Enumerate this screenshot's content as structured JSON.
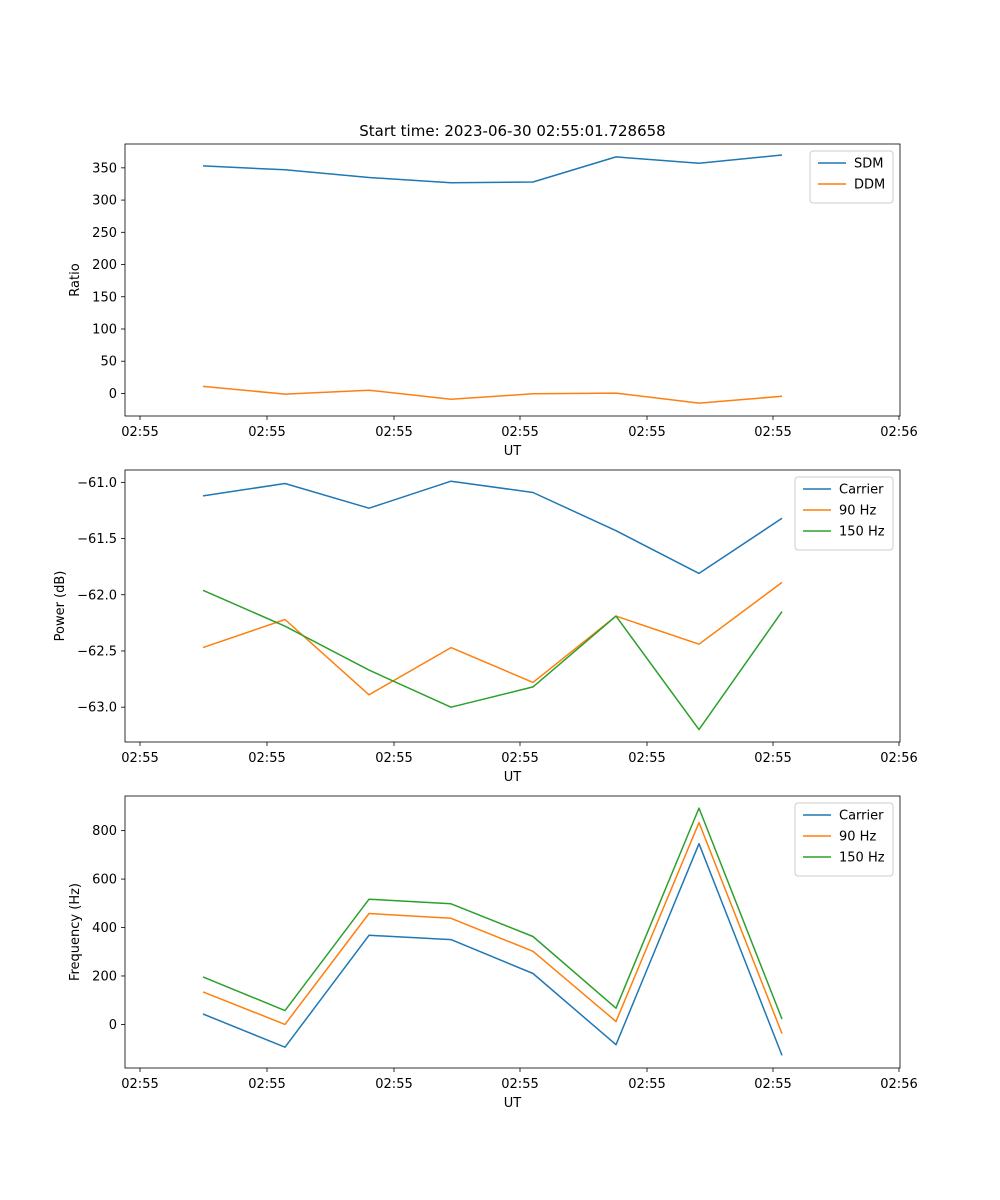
{
  "figure": {
    "title": "Start time: 2023-06-30 02:55:01.728658"
  },
  "colors": {
    "blue": "#1f77b4",
    "orange": "#ff7f0e",
    "green": "#2ca02c"
  },
  "chart_data": [
    {
      "type": "line",
      "title": "Start time: 2023-06-30 02:55:01.728658",
      "xlabel": "UT",
      "ylabel": "Ratio",
      "x_tick_labels": [
        "02:55",
        "02:55",
        "02:55",
        "02:55",
        "02:55",
        "02:55",
        "02:56"
      ],
      "y_ticks": [
        0,
        50,
        100,
        150,
        200,
        250,
        300,
        350
      ],
      "ylim": [
        -35,
        387
      ],
      "grid": false,
      "legend_position": "top-right",
      "series": [
        {
          "name": "SDM",
          "color": "#1f77b4",
          "values": [
            353,
            347,
            335,
            327,
            328,
            367,
            357,
            370
          ]
        },
        {
          "name": "DDM",
          "color": "#ff7f0e",
          "values": [
            11,
            -1,
            5,
            -9,
            -0.5,
            0.5,
            -15,
            -4.5
          ]
        }
      ]
    },
    {
      "type": "line",
      "title": "",
      "xlabel": "UT",
      "ylabel": "Power (dB)",
      "x_tick_labels": [
        "02:55",
        "02:55",
        "02:55",
        "02:55",
        "02:55",
        "02:55",
        "02:56"
      ],
      "y_ticks": [
        -61.0,
        -61.5,
        -62.0,
        -62.5,
        -63.0
      ],
      "y_tick_labels": [
        "−61.0",
        "−61.5",
        "−62.0",
        "−62.5",
        "−63.0"
      ],
      "ylim": [
        -63.31,
        -60.89
      ],
      "grid": false,
      "legend_position": "top-right",
      "series": [
        {
          "name": "Carrier",
          "color": "#1f77b4",
          "values": [
            -61.12,
            -61.01,
            -61.23,
            -60.99,
            -61.09,
            -61.43,
            -61.81,
            -61.32
          ]
        },
        {
          "name": "90 Hz",
          "color": "#ff7f0e",
          "values": [
            -62.47,
            -62.22,
            -62.89,
            -62.47,
            -62.78,
            -62.19,
            -62.44,
            -61.89
          ]
        },
        {
          "name": "150 Hz",
          "color": "#2ca02c",
          "values": [
            -61.96,
            -62.28,
            -62.67,
            -63.0,
            -62.82,
            -62.19,
            -63.2,
            -62.15
          ]
        }
      ]
    },
    {
      "type": "line",
      "title": "",
      "xlabel": "UT",
      "ylabel": "Frequency (Hz)",
      "x_tick_labels": [
        "02:55",
        "02:55",
        "02:55",
        "02:55",
        "02:55",
        "02:55",
        "02:56"
      ],
      "y_ticks": [
        0,
        200,
        400,
        600,
        800
      ],
      "ylim": [
        -180,
        943
      ],
      "grid": false,
      "legend_position": "top-right",
      "series": [
        {
          "name": "Carrier",
          "color": "#1f77b4",
          "values": [
            43,
            -94,
            368,
            350,
            210,
            -84,
            746,
            -128
          ]
        },
        {
          "name": "90 Hz",
          "color": "#ff7f0e",
          "values": [
            134,
            0,
            458,
            438,
            302,
            12,
            833,
            -38
          ]
        },
        {
          "name": "150 Hz",
          "color": "#2ca02c",
          "values": [
            196,
            57,
            517,
            498,
            363,
            67,
            893,
            22
          ]
        }
      ]
    }
  ]
}
